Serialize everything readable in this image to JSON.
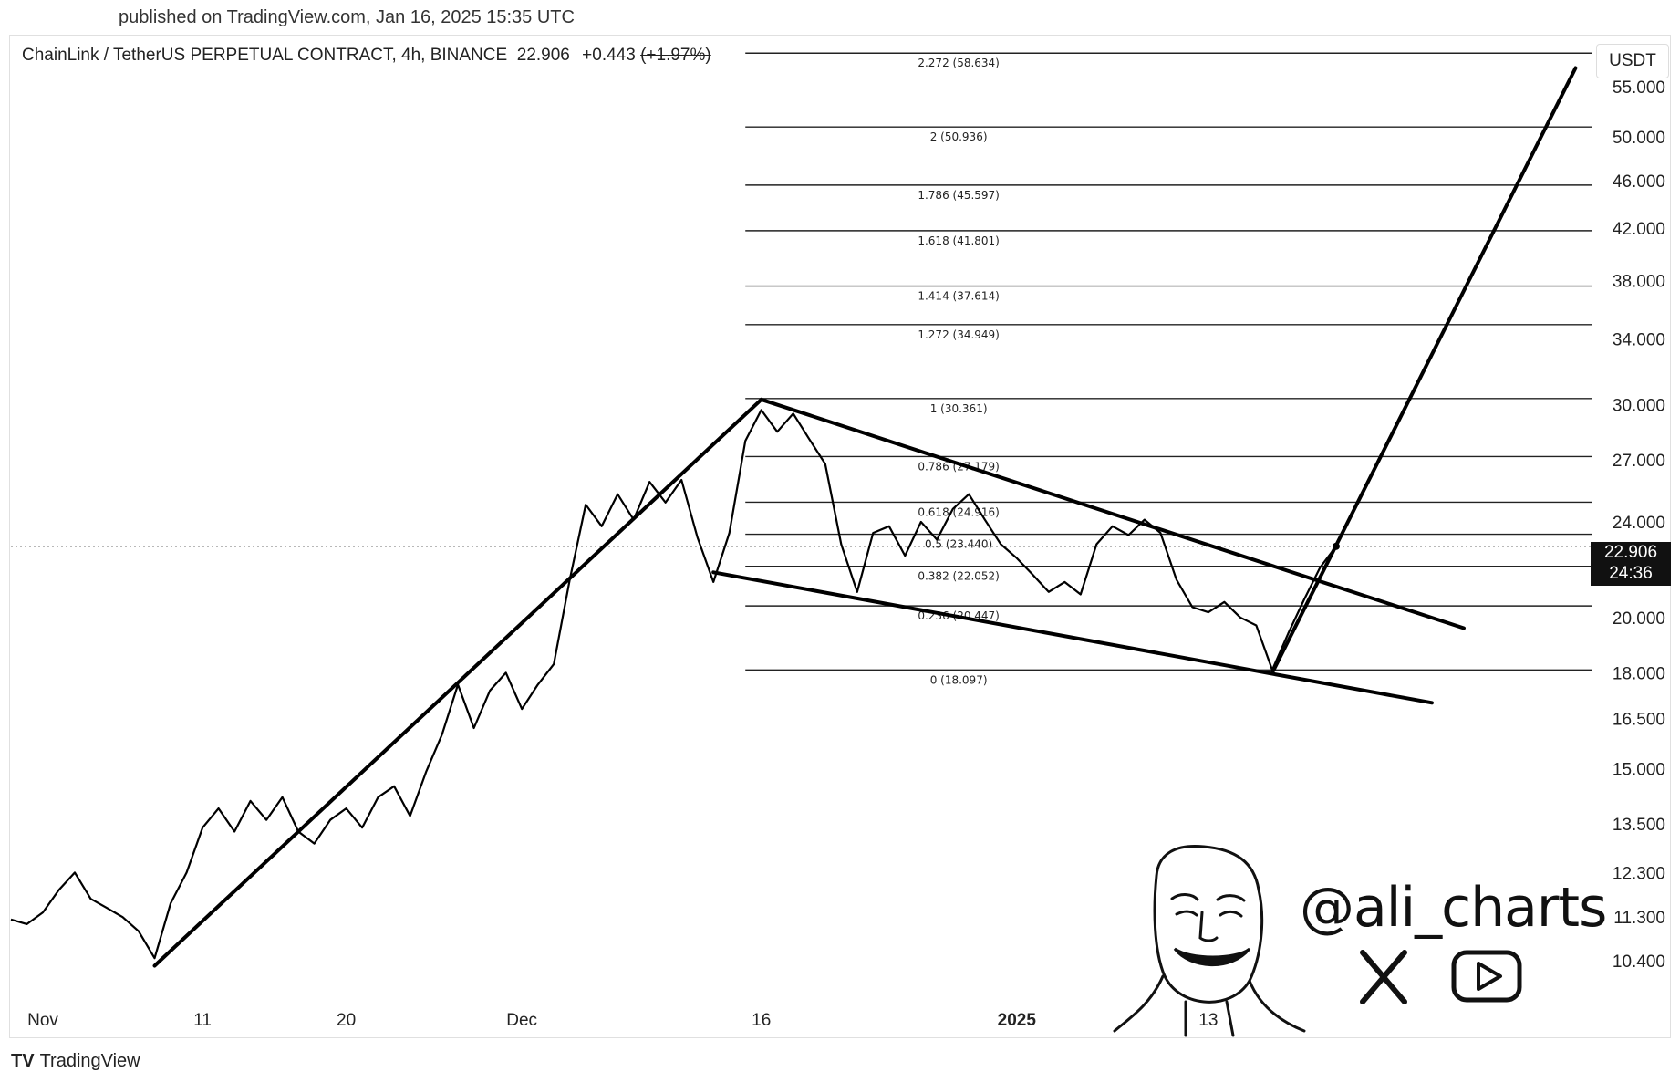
{
  "header": {
    "published": "published on TradingView.com, Jan 16, 2025 15:35 UTC"
  },
  "legend": {
    "symbol": "ChainLink / TetherUS PERPETUAL CONTRACT, 4h, BINANCE",
    "price": "22.906",
    "change": "+0.443",
    "change_pct": "(+1.97%)"
  },
  "currency": "USDT",
  "price_tag": {
    "price": "22.906",
    "countdown": "24:36"
  },
  "footer": {
    "logo": "TV",
    "brand": "TradingView"
  },
  "watermark": {
    "handle": "@ali_charts",
    "icons": [
      "x-logo-icon",
      "youtube-icon",
      "cartoon-face-logo"
    ]
  },
  "chart_data": {
    "type": "line",
    "scale": "log",
    "ylim": [
      9.5,
      60
    ],
    "y_ticks": [
      "55.000",
      "50.000",
      "46.000",
      "42.000",
      "38.000",
      "34.000",
      "30.000",
      "27.000",
      "24.000",
      "20.000",
      "18.000",
      "16.500",
      "15.000",
      "13.500",
      "12.300",
      "11.300",
      "10.400"
    ],
    "x_ticks": [
      {
        "label": "Nov",
        "bold": false
      },
      {
        "label": "11",
        "bold": false
      },
      {
        "label": "20",
        "bold": false
      },
      {
        "label": "Dec",
        "bold": false
      },
      {
        "label": "16",
        "bold": false
      },
      {
        "label": "2025",
        "bold": true
      },
      {
        "label": "13",
        "bold": false
      }
    ],
    "xlim": [
      "2024-10-30",
      "2025-02-06"
    ],
    "x_tick_dates": [
      "2024-11-01",
      "2024-11-11",
      "2024-11-20",
      "2024-12-01",
      "2024-12-16",
      "2025-01-01",
      "2025-01-13"
    ],
    "current_price": 22.906,
    "fib_levels": [
      {
        "ratio": "2.272",
        "price": "58.634"
      },
      {
        "ratio": "2",
        "price": "50.936"
      },
      {
        "ratio": "1.786",
        "price": "45.597"
      },
      {
        "ratio": "1.618",
        "price": "41.801"
      },
      {
        "ratio": "1.414",
        "price": "37.614"
      },
      {
        "ratio": "1.272",
        "price": "34.949"
      },
      {
        "ratio": "1",
        "price": "30.361"
      },
      {
        "ratio": "0.786",
        "price": "27.179"
      },
      {
        "ratio": "0.618",
        "price": "24.916"
      },
      {
        "ratio": "0.5",
        "price": "23.440"
      },
      {
        "ratio": "0.382",
        "price": "22.052"
      },
      {
        "ratio": "0.236",
        "price": "20.447"
      },
      {
        "ratio": "0",
        "price": "18.097"
      }
    ],
    "fib_start": "2024-12-15",
    "series": [
      {
        "points": [
          [
            "2024-10-30",
            11.25
          ],
          [
            "2024-10-31",
            11.15
          ],
          [
            "2024-11-01",
            11.4
          ],
          [
            "2024-11-02",
            11.9
          ],
          [
            "2024-11-03",
            12.3
          ],
          [
            "2024-11-04",
            11.7
          ],
          [
            "2024-11-05",
            11.5
          ],
          [
            "2024-11-06",
            11.3
          ],
          [
            "2024-11-07",
            11.0
          ],
          [
            "2024-11-08",
            10.45
          ],
          [
            "2024-11-09",
            11.6
          ],
          [
            "2024-11-10",
            12.3
          ],
          [
            "2024-11-11",
            13.4
          ],
          [
            "2024-11-12",
            13.9
          ],
          [
            "2024-11-13",
            13.3
          ],
          [
            "2024-11-14",
            14.1
          ],
          [
            "2024-11-15",
            13.6
          ],
          [
            "2024-11-16",
            14.2
          ],
          [
            "2024-11-17",
            13.3
          ],
          [
            "2024-11-18",
            13.0
          ],
          [
            "2024-11-19",
            13.6
          ],
          [
            "2024-11-20",
            13.9
          ],
          [
            "2024-11-21",
            13.4
          ],
          [
            "2024-11-22",
            14.2
          ],
          [
            "2024-11-23",
            14.5
          ],
          [
            "2024-11-24",
            13.7
          ],
          [
            "2024-11-25",
            14.9
          ],
          [
            "2024-11-26",
            16.0
          ],
          [
            "2024-11-27",
            17.6
          ],
          [
            "2024-11-28",
            16.2
          ],
          [
            "2024-11-29",
            17.4
          ],
          [
            "2024-11-30",
            18.0
          ],
          [
            "2024-12-01",
            16.8
          ],
          [
            "2024-12-02",
            17.6
          ],
          [
            "2024-12-03",
            18.3
          ],
          [
            "2024-12-04",
            21.5
          ],
          [
            "2024-12-05",
            24.8
          ],
          [
            "2024-12-06",
            23.8
          ],
          [
            "2024-12-07",
            25.3
          ],
          [
            "2024-12-08",
            24.1
          ],
          [
            "2024-12-09",
            25.9
          ],
          [
            "2024-12-10",
            24.9
          ],
          [
            "2024-12-11",
            26.0
          ],
          [
            "2024-12-12",
            23.3
          ],
          [
            "2024-12-13",
            21.4
          ],
          [
            "2024-12-14",
            23.5
          ],
          [
            "2024-12-15",
            28.0
          ],
          [
            "2024-12-16",
            29.7
          ],
          [
            "2024-12-17",
            28.5
          ],
          [
            "2024-12-18",
            29.5
          ],
          [
            "2024-12-19",
            28.1
          ],
          [
            "2024-12-20",
            26.8
          ],
          [
            "2024-12-21",
            23.0
          ],
          [
            "2024-12-22",
            21.0
          ],
          [
            "2024-12-23",
            23.5
          ],
          [
            "2024-12-24",
            23.8
          ],
          [
            "2024-12-25",
            22.5
          ],
          [
            "2024-12-26",
            24.0
          ],
          [
            "2024-12-27",
            23.2
          ],
          [
            "2024-12-28",
            24.6
          ],
          [
            "2024-12-29",
            25.3
          ],
          [
            "2024-12-30",
            24.1
          ],
          [
            "2024-12-31",
            23.0
          ],
          [
            "2025-01-01",
            22.4
          ],
          [
            "2025-01-02",
            21.7
          ],
          [
            "2025-01-03",
            21.0
          ],
          [
            "2025-01-04",
            21.4
          ],
          [
            "2025-01-05",
            20.9
          ],
          [
            "2025-01-06",
            23.0
          ],
          [
            "2025-01-07",
            23.8
          ],
          [
            "2025-01-08",
            23.4
          ],
          [
            "2025-01-09",
            24.1
          ],
          [
            "2025-01-10",
            23.5
          ],
          [
            "2025-01-11",
            21.5
          ],
          [
            "2025-01-12",
            20.4
          ],
          [
            "2025-01-13",
            20.2
          ],
          [
            "2025-01-14",
            20.6
          ],
          [
            "2025-01-15",
            20.0
          ],
          [
            "2025-01-16",
            19.7
          ],
          [
            "2025-01-17",
            18.1
          ],
          [
            "2025-01-18",
            19.4
          ],
          [
            "2025-01-19",
            20.7
          ],
          [
            "2025-01-20",
            22.0
          ],
          [
            "2025-01-21",
            22.906
          ]
        ]
      }
    ],
    "trendlines": [
      {
        "from": [
          "2024-11-08",
          10.3
        ],
        "to": [
          "2024-12-16",
          30.3
        ]
      },
      {
        "from": [
          "2024-12-16",
          30.3
        ],
        "to": [
          "2025-01-29",
          19.6
        ]
      },
      {
        "from": [
          "2024-12-13",
          21.8
        ],
        "to": [
          "2025-01-27",
          17.0
        ]
      },
      {
        "from": [
          "2025-01-17",
          18.0
        ],
        "to": [
          "2025-02-05",
          57.0
        ]
      }
    ]
  }
}
